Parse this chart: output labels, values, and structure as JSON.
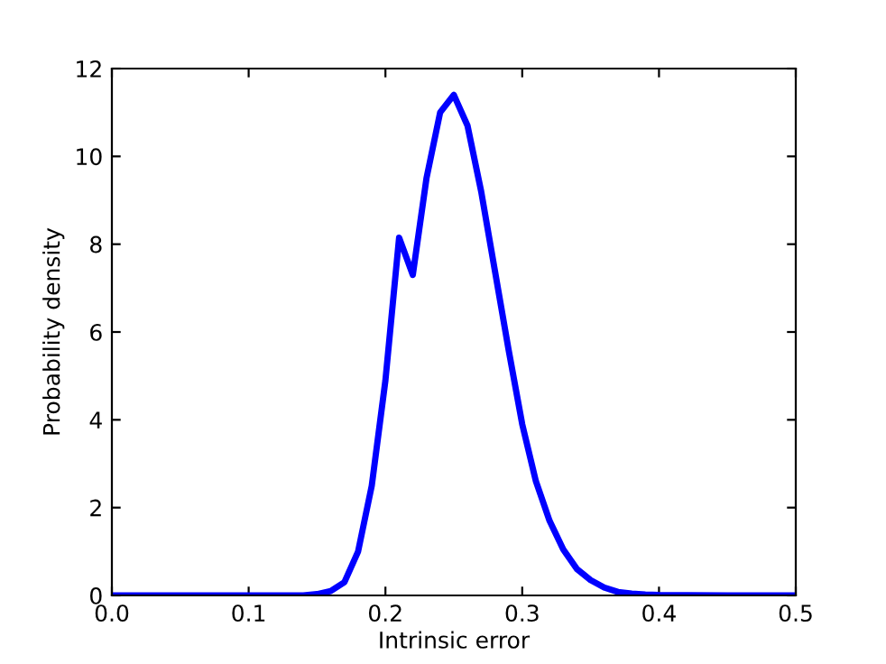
{
  "chart_data": {
    "type": "line",
    "xlabel": "Intrinsic error",
    "ylabel": "Probability density",
    "x": [
      0.0,
      0.1,
      0.14,
      0.15,
      0.16,
      0.17,
      0.18,
      0.19,
      0.2,
      0.21,
      0.22,
      0.23,
      0.24,
      0.25,
      0.26,
      0.27,
      0.28,
      0.29,
      0.3,
      0.31,
      0.32,
      0.33,
      0.34,
      0.35,
      0.36,
      0.37,
      0.38,
      0.39,
      0.4,
      0.45,
      0.5
    ],
    "series": [
      {
        "color": "#0000ff",
        "values": [
          0,
          0,
          0,
          0.03,
          0.1,
          0.3,
          1.0,
          2.5,
          4.9,
          8.15,
          7.3,
          9.5,
          11.0,
          11.4,
          10.7,
          9.2,
          7.4,
          5.6,
          3.9,
          2.6,
          1.7,
          1.05,
          0.6,
          0.35,
          0.18,
          0.08,
          0.04,
          0.02,
          0.01,
          0,
          0
        ]
      }
    ],
    "xlim": [
      0.0,
      0.5
    ],
    "xticks": [
      {
        "value": 0,
        "label": "0.0"
      },
      0.1,
      0.2,
      0.3,
      0.4,
      0.5
    ],
    "ylim": [
      0,
      12
    ],
    "yticks": [
      0,
      2,
      4,
      6,
      8,
      10,
      12
    ],
    "grid": false,
    "marker": "none",
    "line_style": "solid"
  }
}
